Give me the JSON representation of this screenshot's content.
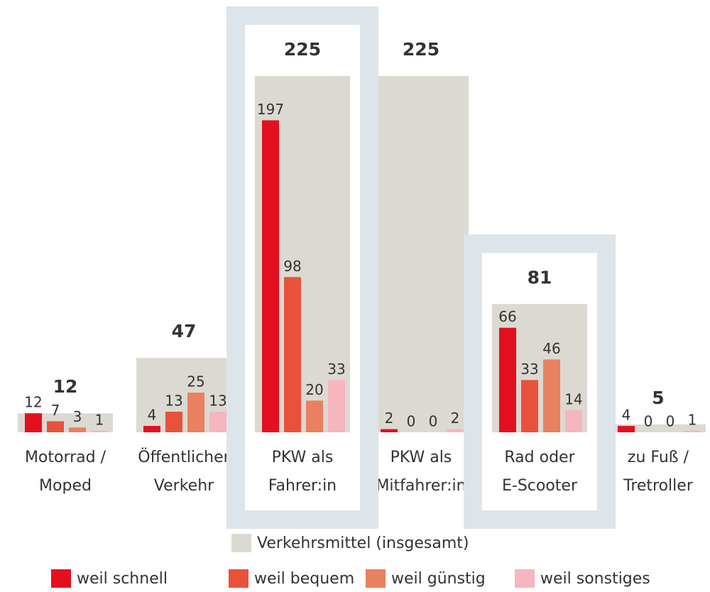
{
  "chart_data": {
    "type": "bar",
    "categories": [
      [
        "Motorrad /",
        "Moped"
      ],
      [
        "Öffentlicher",
        "Verkehr"
      ],
      [
        "PKW als",
        "Fahrer:in"
      ],
      [
        "PKW als",
        "Mitfahrer:in"
      ],
      [
        "Rad oder",
        "E-Scooter"
      ],
      [
        "zu Fuß /",
        "Tretroller"
      ]
    ],
    "total_name": "Verkehrsmittel (insgesamt)",
    "total_color": "#dcd9d2",
    "totals": [
      12,
      47,
      225,
      225,
      81,
      5
    ],
    "series": [
      {
        "name": "weil schnell",
        "color": "#e3101f",
        "values": [
          12,
          4,
          197,
          2,
          66,
          4
        ]
      },
      {
        "name": "weil bequem",
        "color": "#e8523b",
        "values": [
          7,
          13,
          98,
          0,
          33,
          0
        ]
      },
      {
        "name": "weil günstig",
        "color": "#e9805f",
        "values": [
          3,
          25,
          20,
          0,
          46,
          0
        ]
      },
      {
        "name": "weil sonstiges",
        "color": "#f5b6bf",
        "values": [
          1,
          13,
          33,
          2,
          14,
          1
        ]
      }
    ],
    "ylim": [
      0,
      225
    ],
    "highlight_categories": [
      2,
      4
    ],
    "highlight_color": "#dde4ea"
  }
}
